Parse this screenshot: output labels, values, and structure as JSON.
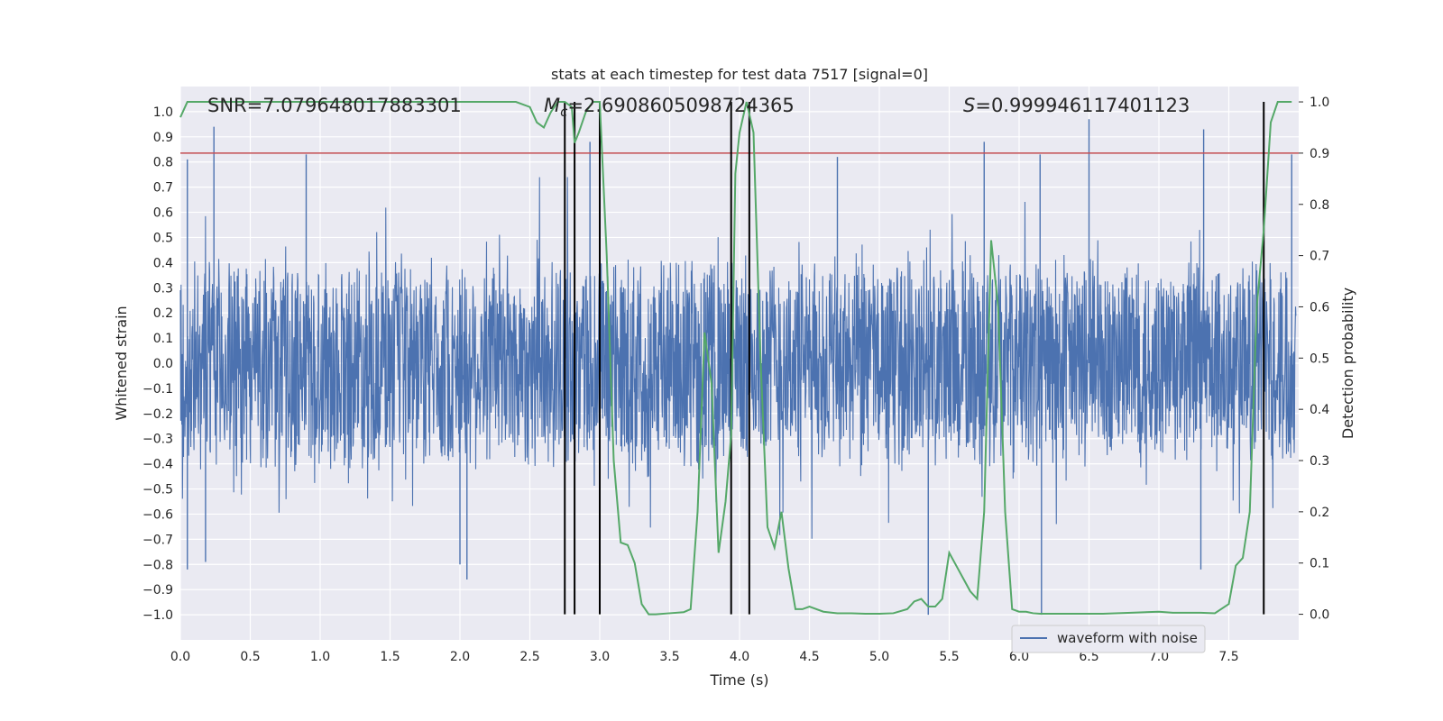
{
  "chart_data": {
    "type": "line",
    "title": "stats at each timestep for test data 7517 [signal=0]",
    "xlabel": "Time (s)",
    "ylabel_left": "Whitened strain",
    "ylabel_right": "Detection probability",
    "xlim": [
      0.0,
      8.0
    ],
    "ylim_left": [
      -1.1,
      1.1
    ],
    "ylim_right": [
      -0.05,
      1.03
    ],
    "xticks": [
      "0.0",
      "0.5",
      "1.0",
      "1.5",
      "2.0",
      "2.5",
      "3.0",
      "3.5",
      "4.0",
      "4.5",
      "5.0",
      "5.5",
      "6.0",
      "6.5",
      "7.0",
      "7.5"
    ],
    "yticks_left": [
      "1.0",
      "0.9",
      "0.8",
      "0.7",
      "0.6",
      "0.5",
      "0.4",
      "0.3",
      "0.2",
      "0.1",
      "0.0",
      "−0.1",
      "−0.2",
      "−0.3",
      "−0.4",
      "−0.5",
      "−0.6",
      "−0.7",
      "−0.8",
      "−0.9",
      "−1.0"
    ],
    "yticks_right": [
      "1.0",
      "0.9",
      "0.8",
      "0.7",
      "0.6",
      "0.5",
      "0.4",
      "0.3",
      "0.2",
      "0.1",
      "0.0"
    ],
    "annotations": {
      "snr": "SNR=7.079648017883301",
      "mc_symbol": "M",
      "mc_sub": "c",
      "mc_value": "=2.6908605098724365",
      "s_symbol": "S",
      "s_value": "=0.999946117401123"
    },
    "legend": {
      "label": "waveform with noise",
      "location": "lower-right"
    },
    "threshold": {
      "value": 0.9,
      "axis": "right",
      "color": "#c44e52"
    },
    "detection_times": [
      2.75,
      2.82,
      3.0,
      3.94,
      4.07,
      7.75
    ],
    "series": [
      {
        "name": "waveform with noise",
        "color": "#4c72b0",
        "axis": "left",
        "description_only": false,
        "noise_band": 0.4,
        "spikes": [
          {
            "t": 0.05,
            "v": 0.81
          },
          {
            "t": 0.05,
            "v": -0.82
          },
          {
            "t": 0.24,
            "v": 0.94
          },
          {
            "t": 0.18,
            "v": -0.79
          },
          {
            "t": 0.9,
            "v": 0.83
          },
          {
            "t": 2.05,
            "v": -0.86
          },
          {
            "t": 2.0,
            "v": -0.8
          },
          {
            "t": 2.93,
            "v": 0.88
          },
          {
            "t": 3.0,
            "v": -0.78
          },
          {
            "t": 3.94,
            "v": -0.8
          },
          {
            "t": 4.07,
            "v": 0.97
          },
          {
            "t": 4.7,
            "v": 0.82
          },
          {
            "t": 5.35,
            "v": -1.0
          },
          {
            "t": 6.16,
            "v": -1.0
          },
          {
            "t": 6.5,
            "v": 0.97
          },
          {
            "t": 7.32,
            "v": 0.93
          },
          {
            "t": 7.95,
            "v": 0.83
          },
          {
            "t": 6.15,
            "v": 0.83
          },
          {
            "t": 5.75,
            "v": 0.88
          },
          {
            "t": 7.3,
            "v": -0.82
          }
        ]
      },
      {
        "name": "detection probability",
        "color": "#55a868",
        "axis": "right",
        "x": [
          0.0,
          0.05,
          0.1,
          0.5,
          1.0,
          1.5,
          2.0,
          2.4,
          2.5,
          2.55,
          2.6,
          2.65,
          2.7,
          2.75,
          2.8,
          2.82,
          2.85,
          2.9,
          2.95,
          3.0,
          3.05,
          3.1,
          3.15,
          3.2,
          3.25,
          3.3,
          3.35,
          3.4,
          3.5,
          3.6,
          3.65,
          3.7,
          3.75,
          3.8,
          3.85,
          3.9,
          3.94,
          3.97,
          4.0,
          4.05,
          4.1,
          4.15,
          4.2,
          4.25,
          4.3,
          4.35,
          4.4,
          4.45,
          4.5,
          4.6,
          4.7,
          4.8,
          4.9,
          5.0,
          5.1,
          5.2,
          5.25,
          5.3,
          5.35,
          5.4,
          5.45,
          5.5,
          5.55,
          5.6,
          5.65,
          5.7,
          5.75,
          5.8,
          5.85,
          5.9,
          5.95,
          6.0,
          6.05,
          6.1,
          6.15,
          6.2,
          6.4,
          6.6,
          6.8,
          7.0,
          7.1,
          7.2,
          7.3,
          7.4,
          7.5,
          7.55,
          7.6,
          7.65,
          7.7,
          7.75,
          7.8,
          7.85,
          7.9,
          7.95
        ],
        "y": [
          0.97,
          1.0,
          1.0,
          1.0,
          1.0,
          1.0,
          1.0,
          1.0,
          0.99,
          0.96,
          0.95,
          0.98,
          1.0,
          1.0,
          0.99,
          0.92,
          0.94,
          0.98,
          1.0,
          1.0,
          0.7,
          0.3,
          0.14,
          0.135,
          0.1,
          0.02,
          0.0,
          0.0,
          0.002,
          0.004,
          0.01,
          0.2,
          0.55,
          0.45,
          0.12,
          0.22,
          0.35,
          0.86,
          0.94,
          1.0,
          0.94,
          0.5,
          0.17,
          0.13,
          0.2,
          0.09,
          0.01,
          0.01,
          0.015,
          0.005,
          0.002,
          0.002,
          0.001,
          0.001,
          0.002,
          0.01,
          0.025,
          0.03,
          0.015,
          0.015,
          0.03,
          0.12,
          0.095,
          0.07,
          0.045,
          0.03,
          0.2,
          0.73,
          0.6,
          0.2,
          0.01,
          0.005,
          0.005,
          0.002,
          0.001,
          0.001,
          0.001,
          0.001,
          0.003,
          0.005,
          0.003,
          0.003,
          0.003,
          0.002,
          0.02,
          0.095,
          0.11,
          0.2,
          0.6,
          0.75,
          0.96,
          1.0,
          1.0,
          1.0
        ]
      }
    ]
  }
}
